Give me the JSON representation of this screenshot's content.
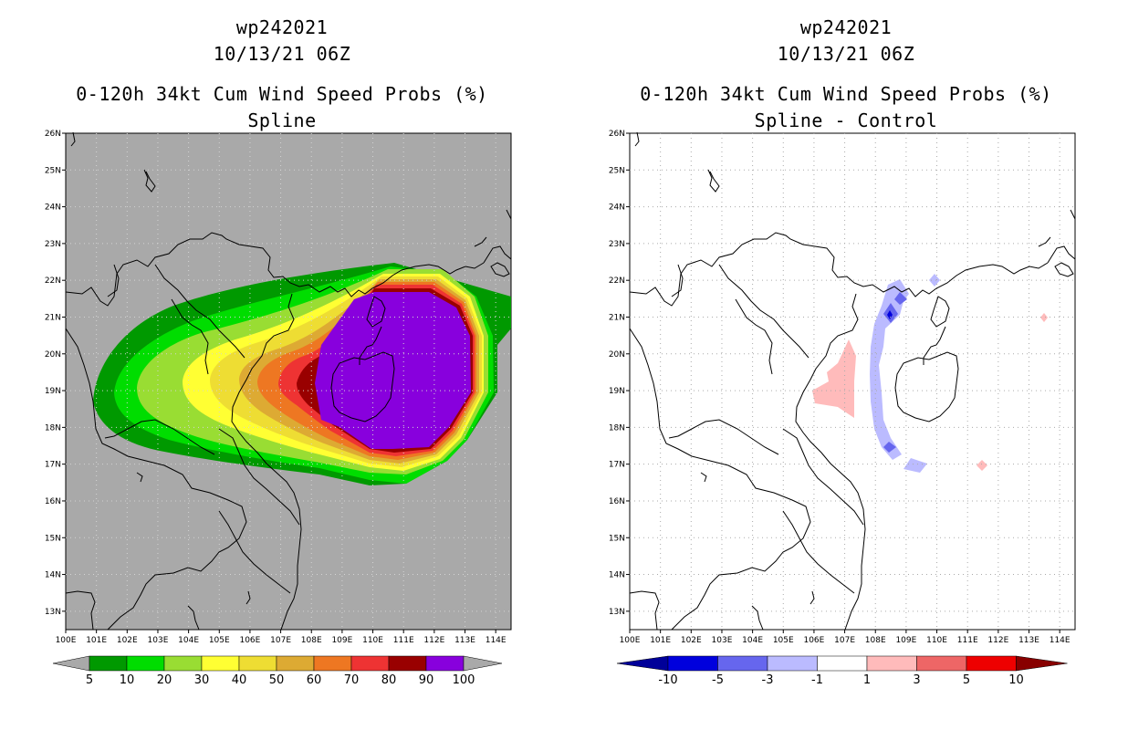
{
  "left_panel": {
    "title_line1": "wp242021",
    "title_line2": "10/13/21 06Z",
    "title_line3": "0-120h 34kt Cum Wind Speed Probs (%)",
    "title_line4": "Spline",
    "colorbar": {
      "labels": [
        "5",
        "10",
        "20",
        "30",
        "40",
        "50",
        "60",
        "70",
        "80",
        "90",
        "100"
      ],
      "colors": [
        "#009900",
        "#00dd00",
        "#99dd33",
        "#ffff33",
        "#eedd33",
        "#ddaa33",
        "#ee7722",
        "#ee3333",
        "#990000",
        "#8800dd"
      ]
    }
  },
  "right_panel": {
    "title_line1": "wp242021",
    "title_line2": "10/13/21 06Z",
    "title_line3": "0-120h 34kt Cum Wind Speed Probs (%)",
    "title_line4": "Spline - Control",
    "colorbar": {
      "labels": [
        "-10",
        "-5",
        "-3",
        "-1",
        "1",
        "3",
        "5",
        "10"
      ],
      "colors": [
        "#0000dd",
        "#6666ee",
        "#bbbbff",
        "#ffffff",
        "#ffbbbb",
        "#ee6666",
        "#ee0000"
      ],
      "low_color": "#000099",
      "high_color": "#880000"
    }
  },
  "axes": {
    "x_ticks": [
      "100E",
      "101E",
      "102E",
      "103E",
      "104E",
      "105E",
      "106E",
      "107E",
      "108E",
      "109E",
      "110E",
      "111E",
      "112E",
      "113E",
      "114E"
    ],
    "y_ticks": [
      "26N",
      "25N",
      "24N",
      "23N",
      "22N",
      "21N",
      "20N",
      "19N",
      "18N",
      "17N",
      "16N",
      "15N",
      "14N",
      "13N"
    ]
  },
  "colors": {
    "ocean_left": "#a9a9a9",
    "ocean_right": "#ffffff",
    "coast": "#000000"
  }
}
